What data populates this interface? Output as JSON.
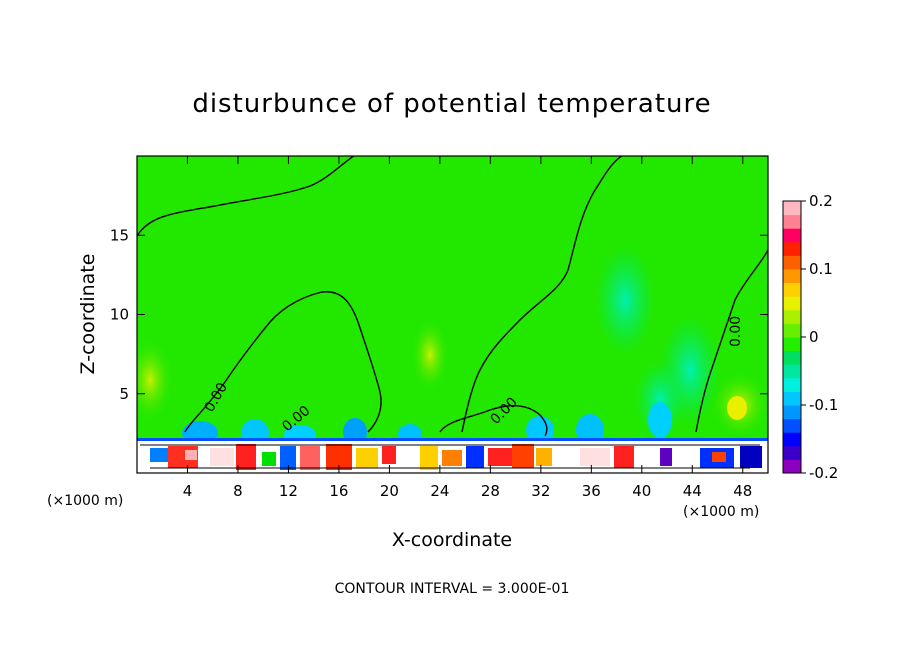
{
  "chart_data": {
    "type": "heatmap",
    "title": "disturbunce of potential temperature",
    "xlabel": "X-coordinate",
    "ylabel": "Z-coordinate",
    "x_unit": "(×1000 m)",
    "y_unit": "(×1000 m)",
    "xlim": [
      0,
      50
    ],
    "ylim": [
      0,
      20
    ],
    "x_ticks": [
      4,
      8,
      12,
      16,
      20,
      24,
      28,
      32,
      36,
      40,
      44,
      48
    ],
    "y_ticks": [
      5,
      10,
      15
    ],
    "colorbar": {
      "min": -0.2,
      "max": 0.2,
      "tick_labels": [
        "0.2",
        "0.1",
        "0",
        "-0.1",
        "-0.2"
      ],
      "tick_values": [
        0.2,
        0.1,
        0,
        -0.1,
        -0.2
      ],
      "colors": [
        "#8e00c0",
        "#3a00c8",
        "#0000ff",
        "#0050ff",
        "#0096ff",
        "#00c8ff",
        "#00f0e0",
        "#00e8a0",
        "#00e060",
        "#22ee00",
        "#66f000",
        "#aaf000",
        "#e8f000",
        "#ffd000",
        "#ff9800",
        "#ff6000",
        "#ff2000",
        "#ff0060",
        "#ff8090",
        "#ffb8c0"
      ]
    },
    "contour_labels": [
      "0.00",
      "0.00",
      "0.00",
      "0.00"
    ],
    "contour_interval_label": "CONTOUR INTERVAL = 3.000E-01"
  }
}
